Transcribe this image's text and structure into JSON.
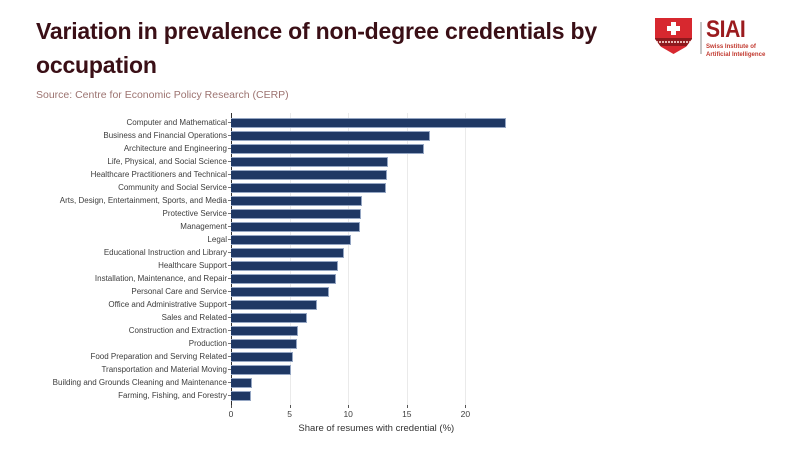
{
  "header": {
    "title": "Variation in prevalence of non-degree credentials by occupation",
    "source": "Source: Centre for Economic Policy Research (CERP)"
  },
  "logo": {
    "acronym": "SIAI",
    "subtitle_line1": "Swiss Institute of",
    "subtitle_line2": "Artificial Intelligence",
    "shield_color": "#d7282f",
    "band_color": "#8e191d",
    "acronym_color": "#9b1b1e",
    "subtitle_color": "#c23a30"
  },
  "colors": {
    "title": "#3a0f16",
    "source": "#9c7370",
    "background": "#ffffff",
    "bar": "#1f3864",
    "bar_edge": "#95a6c3",
    "gridline": "#eaeaea",
    "axis_text": "#3d3d3d"
  },
  "chart_data": {
    "type": "bar",
    "orientation": "horizontal",
    "title": "Variation in prevalence of non-degree credentials by occupation",
    "categories": [
      "Computer and Mathematical",
      "Business and Financial Operations",
      "Architecture and Engineering",
      "Life, Physical, and Social Science",
      "Healthcare Practitioners and Technical",
      "Community and Social Service",
      "Arts, Design, Entertainment, Sports, and Media",
      "Protective Service",
      "Management",
      "Legal",
      "Educational Instruction and Library",
      "Healthcare Support",
      "Installation, Maintenance, and Repair",
      "Personal Care and Service",
      "Office and Administrative Support",
      "Sales and Related",
      "Construction and Extraction",
      "Production",
      "Food Preparation and Serving Related",
      "Transportation and Material Moving",
      "Building and Grounds Cleaning and Maintenance",
      "Farming, Fishing, and Forestry"
    ],
    "values": [
      23.5,
      17.0,
      16.5,
      13.4,
      13.3,
      13.2,
      11.2,
      11.1,
      11.0,
      10.2,
      9.6,
      9.1,
      9.0,
      8.4,
      7.3,
      6.5,
      5.7,
      5.6,
      5.3,
      5.1,
      1.8,
      1.7
    ],
    "xlabel": "Share of resumes with credential (%)",
    "xticks": [
      0,
      5,
      10,
      15,
      20
    ],
    "xlim": [
      0,
      24.8
    ],
    "grid": true,
    "legend": false
  }
}
